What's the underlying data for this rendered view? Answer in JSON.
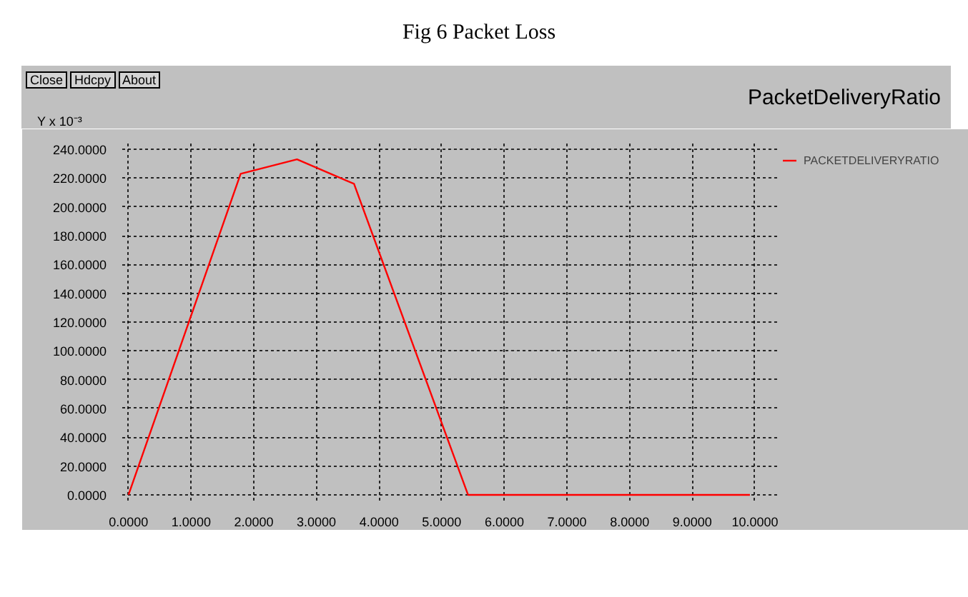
{
  "chart_data": {
    "type": "line",
    "title": "Fig 6 Packet Loss",
    "subtitle": "PacketDeliveryRatio",
    "ylabel": "Y x 10⁻³",
    "annotations": [
      "Close",
      "Hdcpy",
      "About"
    ],
    "x": [
      0,
      1.79,
      2.69,
      3.6,
      5.42,
      9.92
    ],
    "series": [
      {
        "name": "PACKETDELIVERYRATIO",
        "color": "#ff0000",
        "values": [
          0,
          223,
          233,
          216,
          0,
          0
        ]
      }
    ],
    "xlim": [
      -0.1,
      10.4
    ],
    "ylim": [
      -4,
      244
    ],
    "xticks": [
      {
        "value": 0,
        "label": "0.0000"
      },
      {
        "value": 1,
        "label": "1.0000"
      },
      {
        "value": 2,
        "label": "2.0000"
      },
      {
        "value": 3,
        "label": "3.0000"
      },
      {
        "value": 4,
        "label": "4.0000"
      },
      {
        "value": 5,
        "label": "5.0000"
      },
      {
        "value": 6,
        "label": "6.0000"
      },
      {
        "value": 7,
        "label": "7.0000"
      },
      {
        "value": 8,
        "label": "8.0000"
      },
      {
        "value": 9,
        "label": "9.0000"
      },
      {
        "value": 10,
        "label": "10.0000"
      }
    ],
    "yticks": [
      {
        "value": 0,
        "label": "0.0000"
      },
      {
        "value": 20,
        "label": "20.0000"
      },
      {
        "value": 40,
        "label": "40.0000"
      },
      {
        "value": 60,
        "label": "60.0000"
      },
      {
        "value": 80,
        "label": "80.0000"
      },
      {
        "value": 100,
        "label": "100.0000"
      },
      {
        "value": 120,
        "label": "120.0000"
      },
      {
        "value": 140,
        "label": "140.0000"
      },
      {
        "value": 160,
        "label": "160.0000"
      },
      {
        "value": 180,
        "label": "180.0000"
      },
      {
        "value": 200,
        "label": "200.0000"
      },
      {
        "value": 220,
        "label": "220.0000"
      },
      {
        "value": 240,
        "label": "240.0000"
      }
    ],
    "grid": true,
    "legend": "right",
    "marker": "none",
    "line_style": "solid"
  }
}
